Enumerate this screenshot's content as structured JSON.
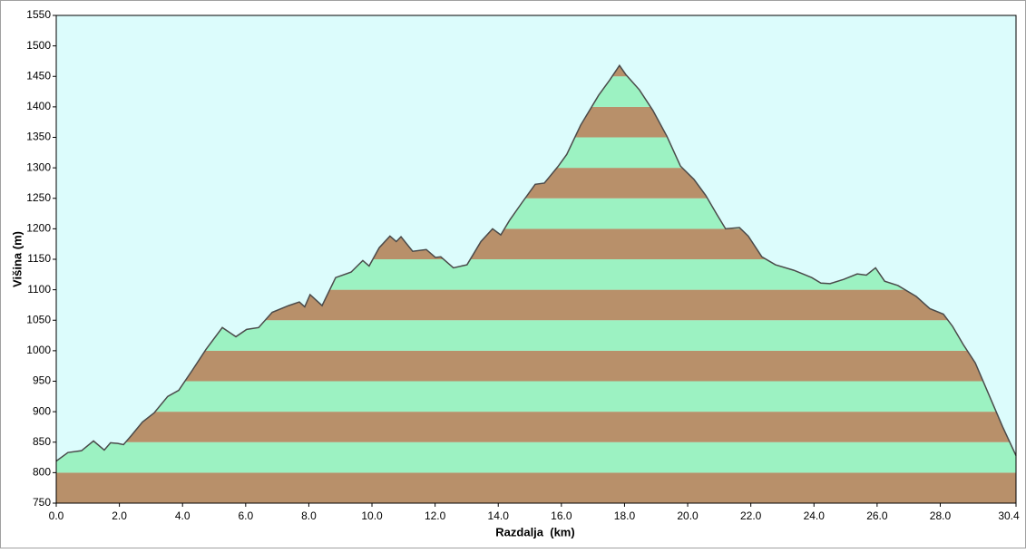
{
  "chart_data": {
    "type": "area",
    "x_label": "Razdalja  (km)",
    "y_label": "Višina (m)",
    "x": [
      0,
      0.37,
      0.8,
      1.18,
      1.52,
      1.72,
      1.95,
      2.13,
      2.38,
      2.73,
      3.1,
      3.53,
      3.88,
      4.31,
      4.74,
      5.26,
      5.69,
      6.03,
      6.41,
      6.84,
      7.36,
      7.7,
      7.87,
      8.04,
      8.42,
      8.85,
      9.34,
      9.71,
      9.91,
      10.23,
      10.57,
      10.77,
      10.92,
      11.29,
      11.72,
      12.01,
      12.18,
      12.58,
      13.01,
      13.22,
      13.45,
      13.82,
      14.08,
      14.36,
      14.74,
      15.17,
      15.46,
      15.89,
      16.17,
      16.61,
      17.18,
      17.53,
      17.84,
      18.04,
      18.47,
      18.9,
      19.34,
      19.77,
      20.2,
      20.57,
      20.92,
      21.2,
      21.64,
      21.92,
      22.35,
      22.78,
      23.36,
      23.93,
      24.22,
      24.51,
      24.94,
      25.37,
      25.66,
      25.95,
      26.24,
      26.66,
      27.24,
      27.67,
      28.1,
      28.39,
      28.73,
      29.11,
      29.54,
      29.97,
      30.4
    ],
    "series": [
      {
        "color": "#4a4a4a",
        "values": [
          819,
          833,
          836,
          852,
          837,
          849,
          848,
          846,
          861,
          883,
          898,
          925,
          935,
          968,
          1002,
          1038,
          1023,
          1035,
          1038,
          1063,
          1074,
          1080,
          1072,
          1092,
          1074,
          1120,
          1129,
          1148,
          1139,
          1169,
          1188,
          1179,
          1187,
          1163,
          1166,
          1153,
          1154,
          1136,
          1141,
          1159,
          1179,
          1200,
          1190,
          1214,
          1242,
          1273,
          1275,
          1302,
          1322,
          1370,
          1419,
          1444,
          1468,
          1453,
          1428,
          1394,
          1352,
          1303,
          1281,
          1255,
          1224,
          1200,
          1202,
          1188,
          1154,
          1141,
          1132,
          1120,
          1111,
          1110,
          1117,
          1126,
          1124,
          1136,
          1114,
          1107,
          1089,
          1069,
          1060,
          1040,
          1010,
          980,
          928,
          876,
          828
        ]
      }
    ],
    "xlim": [
      0,
      30.4
    ],
    "ylim": [
      750,
      1550
    ],
    "xticks": [
      {
        "value": 0,
        "label": "0.0"
      },
      {
        "value": 2,
        "label": "2.0"
      },
      {
        "value": 4,
        "label": "4.0"
      },
      {
        "value": 6,
        "label": "6.0"
      },
      {
        "value": 8,
        "label": "8.0"
      },
      {
        "value": 10,
        "label": "10.0"
      },
      {
        "value": 12,
        "label": "12.0"
      },
      {
        "value": 14,
        "label": "14.0"
      },
      {
        "value": 16,
        "label": "16.0"
      },
      {
        "value": 18,
        "label": "18.0"
      },
      {
        "value": 20,
        "label": "20.0"
      },
      {
        "value": 22,
        "label": "22.0"
      },
      {
        "value": 24,
        "label": "24.0"
      },
      {
        "value": 26,
        "label": "26.0"
      },
      {
        "value": 28,
        "label": "28.0"
      },
      30.4
    ],
    "yticks": [
      750,
      800,
      850,
      900,
      950,
      1000,
      1050,
      1100,
      1150,
      1200,
      1250,
      1300,
      1350,
      1400,
      1450,
      1500,
      1550
    ],
    "band_colors": [
      "#b8906a",
      "#9cf2c2"
    ],
    "background": "#dcfcfc"
  }
}
